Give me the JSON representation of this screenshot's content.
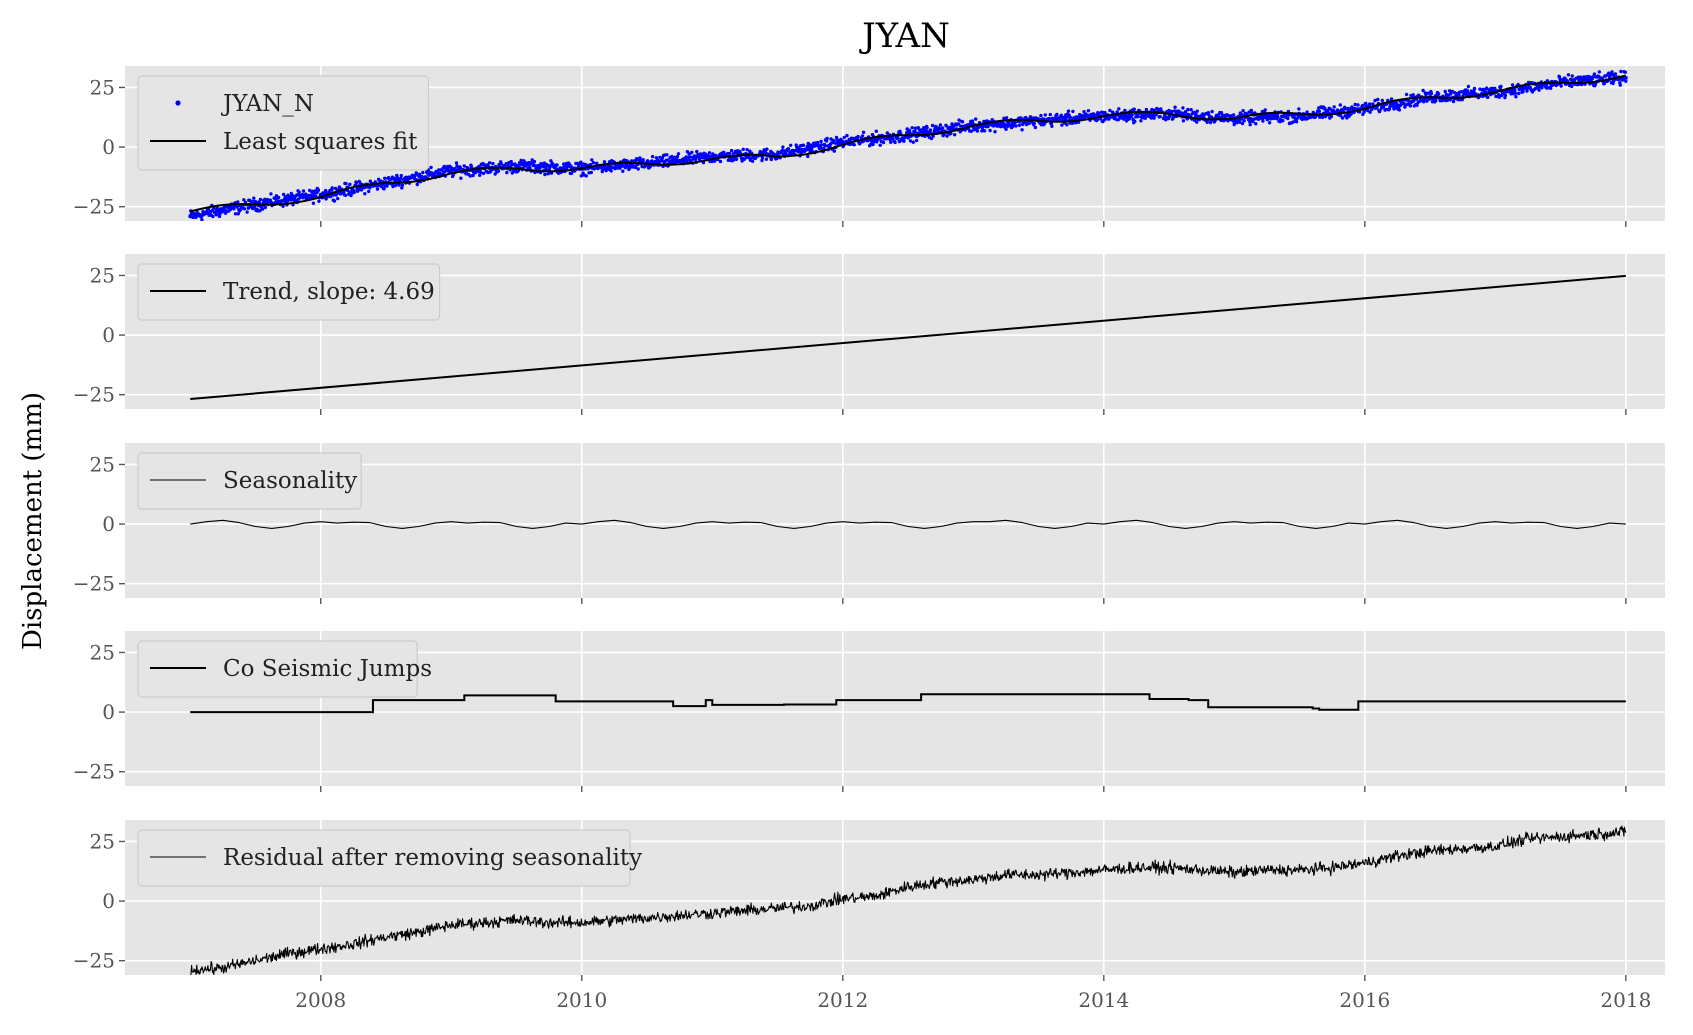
{
  "figure": {
    "title": "JYAN",
    "ylabel": "Displacement (mm)",
    "background": "#ffffff",
    "panel_background": "#e5e5e5",
    "grid_color": "#ffffff"
  },
  "chart_data": [
    {
      "type": "scatter",
      "title": "",
      "xlabel": "",
      "ylabel": "",
      "xlim": [
        2006.5,
        2018.3
      ],
      "ylim": [
        -31,
        34
      ],
      "yticks": [
        -25,
        0,
        25
      ],
      "ytick_labels": [
        "−25",
        "0",
        "25"
      ],
      "grid": true,
      "legend_position": "top-left",
      "series": [
        {
          "name": "JYAN_N",
          "kind": "points",
          "color": "#0000ff",
          "x": [
            2007.0,
            2007.5,
            2008.0,
            2008.5,
            2009.0,
            2009.5,
            2010.0,
            2010.5,
            2011.0,
            2011.5,
            2012.0,
            2012.5,
            2013.0,
            2013.5,
            2014.0,
            2014.5,
            2015.0,
            2015.5,
            2016.0,
            2016.5,
            2017.0,
            2017.5,
            2018.0
          ],
          "y": [
            -29,
            -24,
            -20,
            -15,
            -10,
            -8,
            -9,
            -7,
            -4,
            -3,
            2,
            5,
            9,
            11,
            13,
            14,
            12,
            13,
            16,
            21,
            23,
            27,
            29
          ]
        },
        {
          "name": "Least squares fit",
          "kind": "line",
          "color": "#000000",
          "x": [
            2007.0,
            2007.5,
            2008.0,
            2008.5,
            2009.0,
            2009.5,
            2010.0,
            2010.5,
            2011.0,
            2011.5,
            2012.0,
            2012.5,
            2013.0,
            2013.5,
            2014.0,
            2014.5,
            2015.0,
            2015.5,
            2016.0,
            2016.5,
            2017.0,
            2017.5,
            2018.0
          ],
          "y": [
            -27,
            -24,
            -21,
            -15,
            -11,
            -9,
            -9,
            -7,
            -5,
            -4,
            1,
            5,
            9,
            11,
            13,
            14,
            12,
            14,
            16,
            21,
            23,
            27,
            30
          ]
        }
      ]
    },
    {
      "type": "line",
      "title": "",
      "xlabel": "",
      "ylabel": "",
      "xlim": [
        2006.5,
        2018.3
      ],
      "ylim": [
        -31,
        34
      ],
      "yticks": [
        -25,
        0,
        25
      ],
      "ytick_labels": [
        "−25",
        "0",
        "25"
      ],
      "grid": true,
      "legend_position": "top-left",
      "series": [
        {
          "name": "Trend, slope: 4.69",
          "kind": "line",
          "color": "#000000",
          "x": [
            2007.0,
            2018.0
          ],
          "y": [
            -26.8,
            24.8
          ]
        }
      ]
    },
    {
      "type": "line",
      "title": "",
      "xlabel": "",
      "ylabel": "",
      "xlim": [
        2006.5,
        2018.3
      ],
      "ylim": [
        -31,
        34
      ],
      "yticks": [
        -25,
        0,
        25
      ],
      "ytick_labels": [
        "−25",
        "0",
        "25"
      ],
      "grid": true,
      "legend_position": "top-left",
      "series": [
        {
          "name": "Seasonality",
          "kind": "line",
          "color": "#000000",
          "x": [
            2007.0,
            2007.125,
            2007.25,
            2007.375,
            2007.5,
            2007.625,
            2007.75,
            2007.875,
            2008.0,
            2008.125,
            2008.25,
            2008.375,
            2008.5,
            2008.625,
            2008.75,
            2008.875,
            2009.0,
            2009.125,
            2009.25,
            2009.375,
            2009.5,
            2009.625,
            2009.75,
            2009.875,
            2010.0,
            2010.125,
            2010.25,
            2010.375,
            2010.5,
            2010.625,
            2010.75,
            2010.875,
            2011.0,
            2011.125,
            2011.25,
            2011.375,
            2011.5,
            2011.625,
            2011.75,
            2011.875,
            2012.0,
            2012.125,
            2012.25,
            2012.375,
            2012.5,
            2012.625,
            2012.75,
            2012.875,
            2013.0,
            2013.125,
            2013.25,
            2013.375,
            2013.5,
            2013.625,
            2013.75,
            2013.875,
            2014.0,
            2014.125,
            2014.25,
            2014.375,
            2014.5,
            2014.625,
            2014.75,
            2014.875,
            2015.0,
            2015.125,
            2015.25,
            2015.375,
            2015.5,
            2015.625,
            2015.75,
            2015.875,
            2016.0,
            2016.125,
            2016.25,
            2016.375,
            2016.5,
            2016.625,
            2016.75,
            2016.875,
            2017.0,
            2017.125,
            2017.25,
            2017.375,
            2017.5,
            2017.625,
            2017.75,
            2017.875,
            2018.0
          ],
          "y": [
            0.0,
            1.0,
            1.6,
            0.6,
            -1.0,
            -1.8,
            -1.0,
            0.4,
            1.0,
            0.4,
            0.8,
            0.6,
            -1.0,
            -1.8,
            -1.0,
            0.4,
            1.0,
            0.4,
            0.8,
            0.6,
            -1.0,
            -1.8,
            -1.0,
            0.4,
            0.0,
            1.0,
            1.6,
            0.6,
            -1.0,
            -1.8,
            -1.0,
            0.4,
            1.0,
            0.4,
            0.8,
            0.6,
            -1.0,
            -1.8,
            -1.0,
            0.4,
            1.0,
            0.4,
            0.8,
            0.6,
            -1.0,
            -1.8,
            -1.0,
            0.4,
            1.0,
            1.0,
            1.6,
            0.6,
            -1.0,
            -1.8,
            -1.0,
            0.4,
            0.0,
            1.0,
            1.6,
            0.6,
            -1.0,
            -1.8,
            -1.0,
            0.4,
            1.0,
            0.4,
            0.8,
            0.6,
            -1.0,
            -1.8,
            -1.0,
            0.4,
            0.0,
            1.0,
            1.6,
            0.6,
            -1.0,
            -1.8,
            -1.0,
            0.4,
            1.0,
            0.4,
            0.8,
            0.6,
            -1.0,
            -1.8,
            -1.0,
            0.4,
            0.0
          ]
        }
      ]
    },
    {
      "type": "line",
      "title": "",
      "xlabel": "",
      "ylabel": "",
      "xlim": [
        2006.5,
        2018.3
      ],
      "ylim": [
        -31,
        34
      ],
      "yticks": [
        -25,
        0,
        25
      ],
      "ytick_labels": [
        "−25",
        "0",
        "25"
      ],
      "grid": true,
      "legend_position": "top-left",
      "series": [
        {
          "name": "Co Seismic Jumps",
          "kind": "step",
          "color": "#000000",
          "x": [
            2007.0,
            2008.4,
            2009.1,
            2009.8,
            2010.7,
            2010.95,
            2011.0,
            2011.55,
            2011.95,
            2012.6,
            2014.35,
            2014.65,
            2014.8,
            2015.6,
            2015.65,
            2015.95,
            2018.0
          ],
          "y": [
            0,
            5,
            7,
            4.5,
            2.5,
            5,
            3,
            3.2,
            5,
            7.5,
            5.5,
            5,
            2,
            1.5,
            1,
            4.5,
            4.5
          ]
        }
      ]
    },
    {
      "type": "line",
      "title": "",
      "xlabel": "",
      "ylabel": "",
      "xlim": [
        2006.5,
        2018.3
      ],
      "ylim": [
        -31,
        34
      ],
      "yticks": [
        -25,
        0,
        25
      ],
      "ytick_labels": [
        "−25",
        "0",
        "25"
      ],
      "xticks": [
        2008,
        2010,
        2012,
        2014,
        2016,
        2018
      ],
      "xtick_labels": [
        "2008",
        "2010",
        "2012",
        "2014",
        "2016",
        "2018"
      ],
      "grid": true,
      "legend_position": "top-left",
      "series": [
        {
          "name": "Residual after removing seasonality",
          "kind": "line",
          "color": "#000000",
          "x": [
            2007.0,
            2007.25,
            2007.5,
            2007.75,
            2008.0,
            2008.25,
            2008.5,
            2008.75,
            2009.0,
            2009.25,
            2009.5,
            2009.75,
            2010.0,
            2010.25,
            2010.5,
            2010.75,
            2011.0,
            2011.25,
            2011.5,
            2011.75,
            2012.0,
            2012.25,
            2012.5,
            2012.75,
            2013.0,
            2013.25,
            2013.5,
            2013.75,
            2014.0,
            2014.25,
            2014.5,
            2014.75,
            2015.0,
            2015.25,
            2015.5,
            2015.75,
            2016.0,
            2016.25,
            2016.5,
            2016.75,
            2017.0,
            2017.25,
            2017.5,
            2017.75,
            2018.0
          ],
          "y": [
            -29,
            -28,
            -25,
            -22,
            -20,
            -18,
            -15,
            -13,
            -10,
            -9,
            -8,
            -9,
            -9,
            -8,
            -7,
            -6,
            -5,
            -4,
            -3,
            -2,
            1,
            2,
            6,
            8,
            9,
            11,
            11,
            12,
            13,
            14,
            14,
            13,
            12,
            13,
            13,
            14,
            16,
            19,
            21,
            22,
            23,
            26,
            27,
            28,
            29
          ]
        }
      ]
    }
  ]
}
